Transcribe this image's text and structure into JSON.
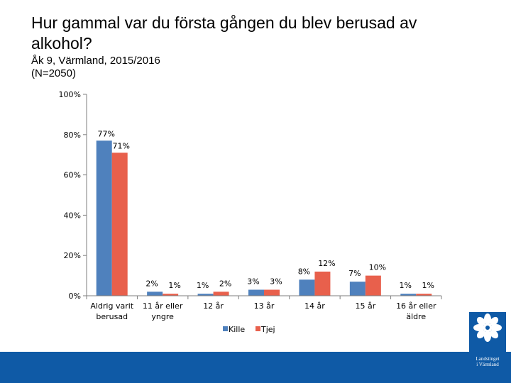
{
  "title": "Hur gammal var du första gången du blev berusad av alkohol?",
  "subtitle_line1": "Åk 9, Värmland, 2015/2016",
  "subtitle_line2": "(N=2050)",
  "logo": {
    "line1": "Landstinget",
    "line2": "i Värmland"
  },
  "colors": {
    "kille": "#4f81bd",
    "tjej": "#e8604c",
    "footer": "#0f5aa6"
  },
  "chart_data": {
    "type": "bar",
    "title": "Hur gammal var du första gången du blev berusad av alkohol?",
    "xlabel": "",
    "ylabel": "",
    "ylim": [
      0,
      100
    ],
    "yticks": [
      "0%",
      "20%",
      "40%",
      "60%",
      "80%",
      "100%"
    ],
    "categories": [
      [
        "Aldrig varit",
        "berusad"
      ],
      [
        "11 år eller",
        "yngre"
      ],
      [
        "12 år"
      ],
      [
        "13 år"
      ],
      [
        "14 år"
      ],
      [
        "15 år"
      ],
      [
        "16 år eller",
        "äldre"
      ]
    ],
    "series": [
      {
        "name": "Kille",
        "values": [
          77,
          2,
          1,
          3,
          8,
          7,
          1
        ],
        "labels": [
          "77%",
          "2%",
          "1%",
          "3%",
          "8%",
          "7%",
          "1%"
        ]
      },
      {
        "name": "Tjej",
        "values": [
          71,
          1,
          2,
          3,
          12,
          10,
          1
        ],
        "labels": [
          "71%",
          "1%",
          "2%",
          "3%",
          "12%",
          "10%",
          "1%"
        ]
      }
    ],
    "legend": "bottom"
  }
}
